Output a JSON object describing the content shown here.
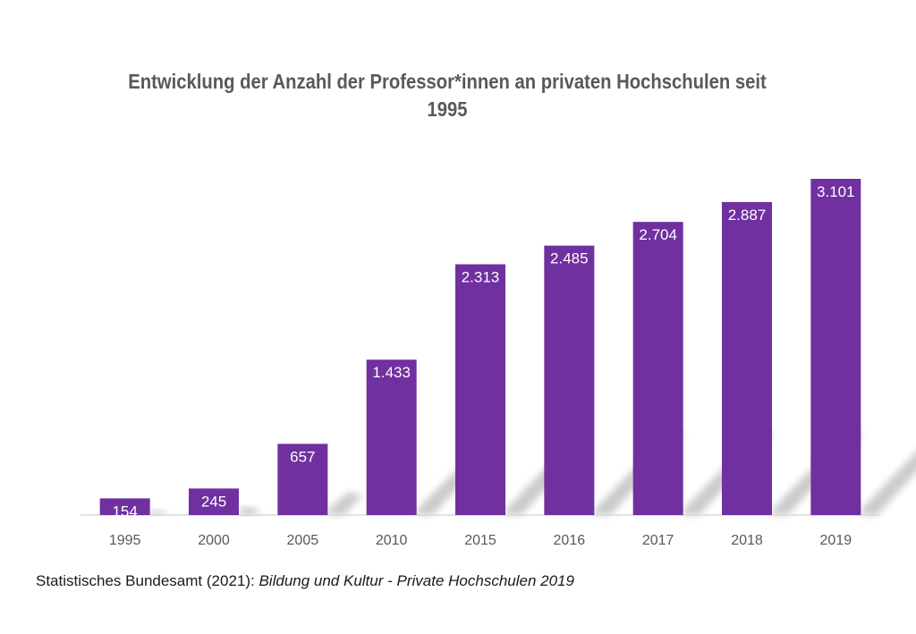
{
  "chart_data": {
    "type": "bar",
    "title": "Entwicklung der Anzahl der Professor*innen an privaten Hochschulen seit 1995",
    "categories": [
      "1995",
      "2000",
      "2005",
      "2010",
      "2015",
      "2016",
      "2017",
      "2018",
      "2019"
    ],
    "values": [
      154,
      245,
      657,
      1433,
      2313,
      2485,
      2704,
      2887,
      3101
    ],
    "data_labels": [
      "154",
      "245",
      "657",
      "1.433",
      "2.313",
      "2.485",
      "2.704",
      "2.887",
      "3.101"
    ],
    "xlabel": "",
    "ylabel": "",
    "ylim": [
      0,
      3101
    ],
    "grid": false,
    "legend": "none",
    "bar_color": "#7030a0"
  },
  "source": {
    "prefix": "Statistisches Bundesamt (2021): ",
    "italic": "Bildung und Kultur - Private Hochschulen 2019"
  }
}
